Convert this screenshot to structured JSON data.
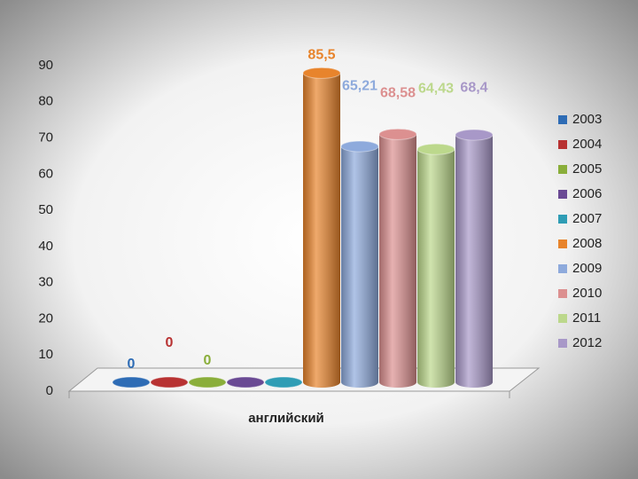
{
  "chart_data": {
    "type": "cylinder_bar",
    "categories": [
      "английский"
    ],
    "ylim": [
      0,
      90
    ],
    "yticks": [
      0,
      10,
      20,
      30,
      40,
      50,
      60,
      70,
      80,
      90
    ],
    "legend": "right",
    "series": [
      {
        "name": "2003",
        "color": "#2e6cb5",
        "values": [
          0
        ],
        "value_labels": [
          "0"
        ]
      },
      {
        "name": "2004",
        "color": "#b83232",
        "values": [
          0
        ],
        "value_labels": [
          "0"
        ]
      },
      {
        "name": "2005",
        "color": "#8aae3a",
        "values": [
          0
        ],
        "value_labels": [
          "0"
        ]
      },
      {
        "name": "2006",
        "color": "#6a4a94",
        "values": [
          0
        ],
        "value_labels": [
          null
        ]
      },
      {
        "name": "2007",
        "color": "#2f9db5",
        "values": [
          0
        ],
        "value_labels": [
          null
        ]
      },
      {
        "name": "2008",
        "color": "#e8842c",
        "values": [
          85.5
        ],
        "value_labels": [
          "85,5"
        ]
      },
      {
        "name": "2009",
        "color": "#8eaadc",
        "values": [
          65.21
        ],
        "value_labels": [
          "65,21"
        ]
      },
      {
        "name": "2010",
        "color": "#dc9090",
        "values": [
          68.58
        ],
        "value_labels": [
          "68,58"
        ]
      },
      {
        "name": "2011",
        "color": "#bcd88c",
        "values": [
          64.43
        ],
        "value_labels": [
          "64,43"
        ]
      },
      {
        "name": "2012",
        "color": "#a898c8",
        "values": [
          68.4
        ],
        "value_labels": [
          "68,4"
        ]
      }
    ]
  }
}
